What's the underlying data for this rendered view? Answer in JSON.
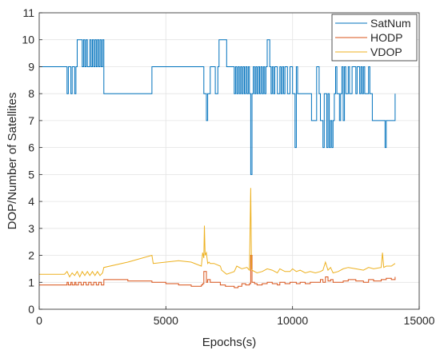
{
  "chart_data": {
    "type": "line",
    "title": "",
    "xlabel": "Epochs(s)",
    "ylabel": "DOP/Number of Satellites",
    "xlim": [
      0,
      15000
    ],
    "ylim": [
      0,
      11
    ],
    "xticks": [
      0,
      5000,
      10000,
      15000
    ],
    "yticks": [
      0,
      1,
      2,
      3,
      4,
      5,
      6,
      7,
      8,
      9,
      10,
      11
    ],
    "grid": true,
    "legend_location": "top-right",
    "series": [
      {
        "name": "SatNum",
        "color": "#0072BD",
        "step": true,
        "x": [
          0,
          1100,
          1150,
          1250,
          1300,
          1400,
          1450,
          1500,
          1700,
          1750,
          1800,
          1850,
          1900,
          2000,
          2050,
          2100,
          2150,
          2200,
          2250,
          2300,
          2350,
          2400,
          2450,
          2500,
          2550,
          4450,
          6500,
          6600,
          6650,
          6750,
          6950,
          7050,
          7100,
          7400,
          7700,
          7750,
          7800,
          7850,
          7900,
          7950,
          8000,
          8050,
          8100,
          8150,
          8200,
          8250,
          8300,
          8350,
          8400,
          8450,
          8500,
          8550,
          8600,
          8650,
          8700,
          8750,
          8800,
          8850,
          8900,
          8950,
          9000,
          9100,
          9150,
          9200,
          9250,
          9300,
          9400,
          9500,
          9550,
          9600,
          9650,
          9700,
          9800,
          9900,
          10000,
          10100,
          10150,
          10200,
          10400,
          10700,
          10750,
          10950,
          11050,
          11100,
          11200,
          11250,
          11350,
          11400,
          11450,
          11500,
          11550,
          11600,
          11650,
          11700,
          11750,
          11850,
          11900,
          11950,
          12000,
          12050,
          12100,
          12200,
          12250,
          12350,
          12500,
          12550,
          12650,
          12700,
          12750,
          12800,
          12850,
          13000,
          13050,
          13150,
          13250,
          13550,
          13650,
          13700,
          14050
        ],
        "values": [
          9,
          8,
          9,
          8,
          9,
          8,
          9,
          10,
          9,
          10,
          9,
          10,
          9,
          10,
          9,
          10,
          9,
          10,
          9,
          10,
          9,
          10,
          9,
          10,
          8,
          9,
          8,
          7,
          8,
          9,
          8,
          9,
          10,
          9,
          8,
          9,
          8,
          9,
          8,
          9,
          8,
          9,
          8,
          9,
          8,
          9,
          8,
          5,
          8,
          9,
          8,
          9,
          8,
          9,
          8,
          9,
          8,
          9,
          8,
          9,
          10,
          9,
          8,
          9,
          8,
          9,
          8,
          9,
          8,
          9,
          8,
          9,
          8,
          9,
          8,
          6,
          9,
          8,
          8,
          8,
          7,
          9,
          8,
          7,
          6,
          8,
          6,
          8,
          6,
          7,
          6,
          7,
          8,
          9,
          8,
          7,
          8,
          9,
          7,
          9,
          8,
          9,
          8,
          9,
          8,
          9,
          8,
          9,
          8,
          9,
          8,
          9,
          8,
          7,
          7,
          7,
          6,
          7,
          8
        ]
      },
      {
        "name": "HODP",
        "color": "#D95319",
        "step": true,
        "x": [
          0,
          1000,
          1100,
          1150,
          1250,
          1300,
          1400,
          1450,
          1550,
          1650,
          1750,
          1850,
          1950,
          2050,
          2150,
          2250,
          2350,
          2450,
          2550,
          3500,
          4450,
          5000,
          5500,
          6000,
          6400,
          6450,
          6500,
          6600,
          6650,
          6750,
          6900,
          7150,
          7350,
          7700,
          7850,
          8000,
          8150,
          8300,
          8350,
          8400,
          8500,
          8600,
          8800,
          9000,
          9200,
          9400,
          9500,
          9700,
          9900,
          10150,
          10300,
          10500,
          10700,
          10900,
          11100,
          11200,
          11300,
          11400,
          11500,
          11600,
          11800,
          12000,
          12200,
          12500,
          12800,
          13000,
          13200,
          13500,
          13700,
          13900,
          14050
        ],
        "values": [
          0.9,
          0.9,
          1.0,
          0.9,
          1.0,
          0.9,
          1.0,
          0.9,
          1.0,
          0.9,
          1.0,
          0.9,
          1.0,
          0.9,
          1.0,
          0.9,
          1.0,
          0.9,
          1.1,
          1.05,
          1.0,
          0.95,
          0.9,
          0.85,
          0.9,
          0.95,
          1.4,
          1.0,
          1.1,
          1.0,
          1.0,
          0.9,
          0.85,
          0.8,
          0.85,
          0.95,
          0.9,
          0.95,
          2.0,
          1.0,
          0.95,
          0.9,
          0.95,
          1.0,
          0.95,
          0.9,
          1.0,
          0.95,
          1.0,
          0.95,
          1.0,
          0.95,
          1.0,
          1.0,
          1.1,
          1.0,
          1.2,
          1.05,
          1.1,
          1.0,
          1.0,
          1.05,
          1.1,
          1.05,
          1.0,
          1.1,
          1.05,
          1.1,
          1.15,
          1.1,
          1.2
        ]
      },
      {
        "name": "VDOP",
        "color": "#EDB120",
        "step": false,
        "x": [
          0,
          1000,
          1100,
          1200,
          1300,
          1400,
          1500,
          1600,
          1700,
          1800,
          1900,
          2000,
          2100,
          2200,
          2300,
          2400,
          2500,
          2550,
          3500,
          4450,
          4500,
          5000,
          5500,
          6000,
          6400,
          6450,
          6500,
          6520,
          6550,
          6600,
          6650,
          6700,
          6750,
          6900,
          7150,
          7200,
          7400,
          7700,
          7800,
          8000,
          8200,
          8300,
          8350,
          8380,
          8400,
          8600,
          8800,
          9000,
          9200,
          9400,
          9500,
          9700,
          9900,
          10000,
          10150,
          10300,
          10500,
          10700,
          10900,
          11100,
          11200,
          11300,
          11400,
          11500,
          11600,
          11800,
          12000,
          12200,
          12500,
          12800,
          13000,
          13200,
          13500,
          13550,
          13600,
          13700,
          13900,
          14050
        ],
        "values": [
          1.3,
          1.3,
          1.4,
          1.2,
          1.35,
          1.25,
          1.4,
          1.2,
          1.4,
          1.25,
          1.4,
          1.25,
          1.4,
          1.25,
          1.4,
          1.25,
          1.35,
          1.55,
          1.75,
          2.0,
          1.7,
          1.75,
          1.8,
          1.75,
          1.6,
          2.1,
          1.9,
          3.1,
          2.0,
          2.1,
          1.7,
          1.75,
          1.7,
          1.7,
          1.6,
          1.45,
          1.3,
          1.4,
          1.6,
          1.5,
          1.55,
          1.45,
          4.5,
          1.5,
          1.45,
          1.35,
          1.4,
          1.5,
          1.45,
          1.35,
          1.5,
          1.4,
          1.4,
          1.5,
          1.4,
          1.45,
          1.35,
          1.4,
          1.35,
          1.4,
          1.45,
          1.75,
          1.45,
          1.55,
          1.35,
          1.4,
          1.5,
          1.55,
          1.5,
          1.45,
          1.55,
          1.5,
          1.55,
          2.1,
          1.55,
          1.6,
          1.6,
          1.7
        ]
      }
    ]
  }
}
